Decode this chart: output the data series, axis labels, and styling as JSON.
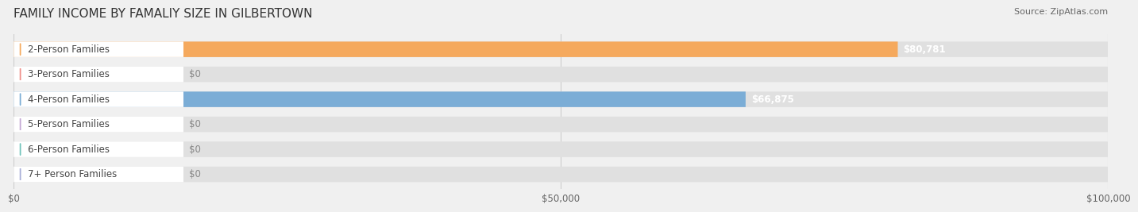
{
  "title": "FAMILY INCOME BY FAMALIY SIZE IN GILBERTOWN",
  "source": "Source: ZipAtlas.com",
  "categories": [
    "2-Person Families",
    "3-Person Families",
    "4-Person Families",
    "5-Person Families",
    "6-Person Families",
    "7+ Person Families"
  ],
  "values": [
    80781,
    0,
    66875,
    0,
    0,
    0
  ],
  "bar_colors": [
    "#F5A95D",
    "#F0908A",
    "#7BADD6",
    "#C4A8D4",
    "#72C4BC",
    "#A8AED8"
  ],
  "label_colors": [
    "#F5A95D",
    "#F0908A",
    "#7BADD6",
    "#C4A8D4",
    "#72C4BC",
    "#A8AED8"
  ],
  "value_labels": [
    "$80,781",
    "$0",
    "$66,875",
    "$0",
    "$0",
    "$0"
  ],
  "xlim": [
    0,
    100000
  ],
  "xticks": [
    0,
    50000,
    100000
  ],
  "xtick_labels": [
    "$0",
    "$50,000",
    "$100,000"
  ],
  "bg_color": "#f0f0f0",
  "bar_bg_color": "#e8e8e8",
  "title_fontsize": 11,
  "label_fontsize": 8.5,
  "value_fontsize": 8.5,
  "source_fontsize": 8
}
